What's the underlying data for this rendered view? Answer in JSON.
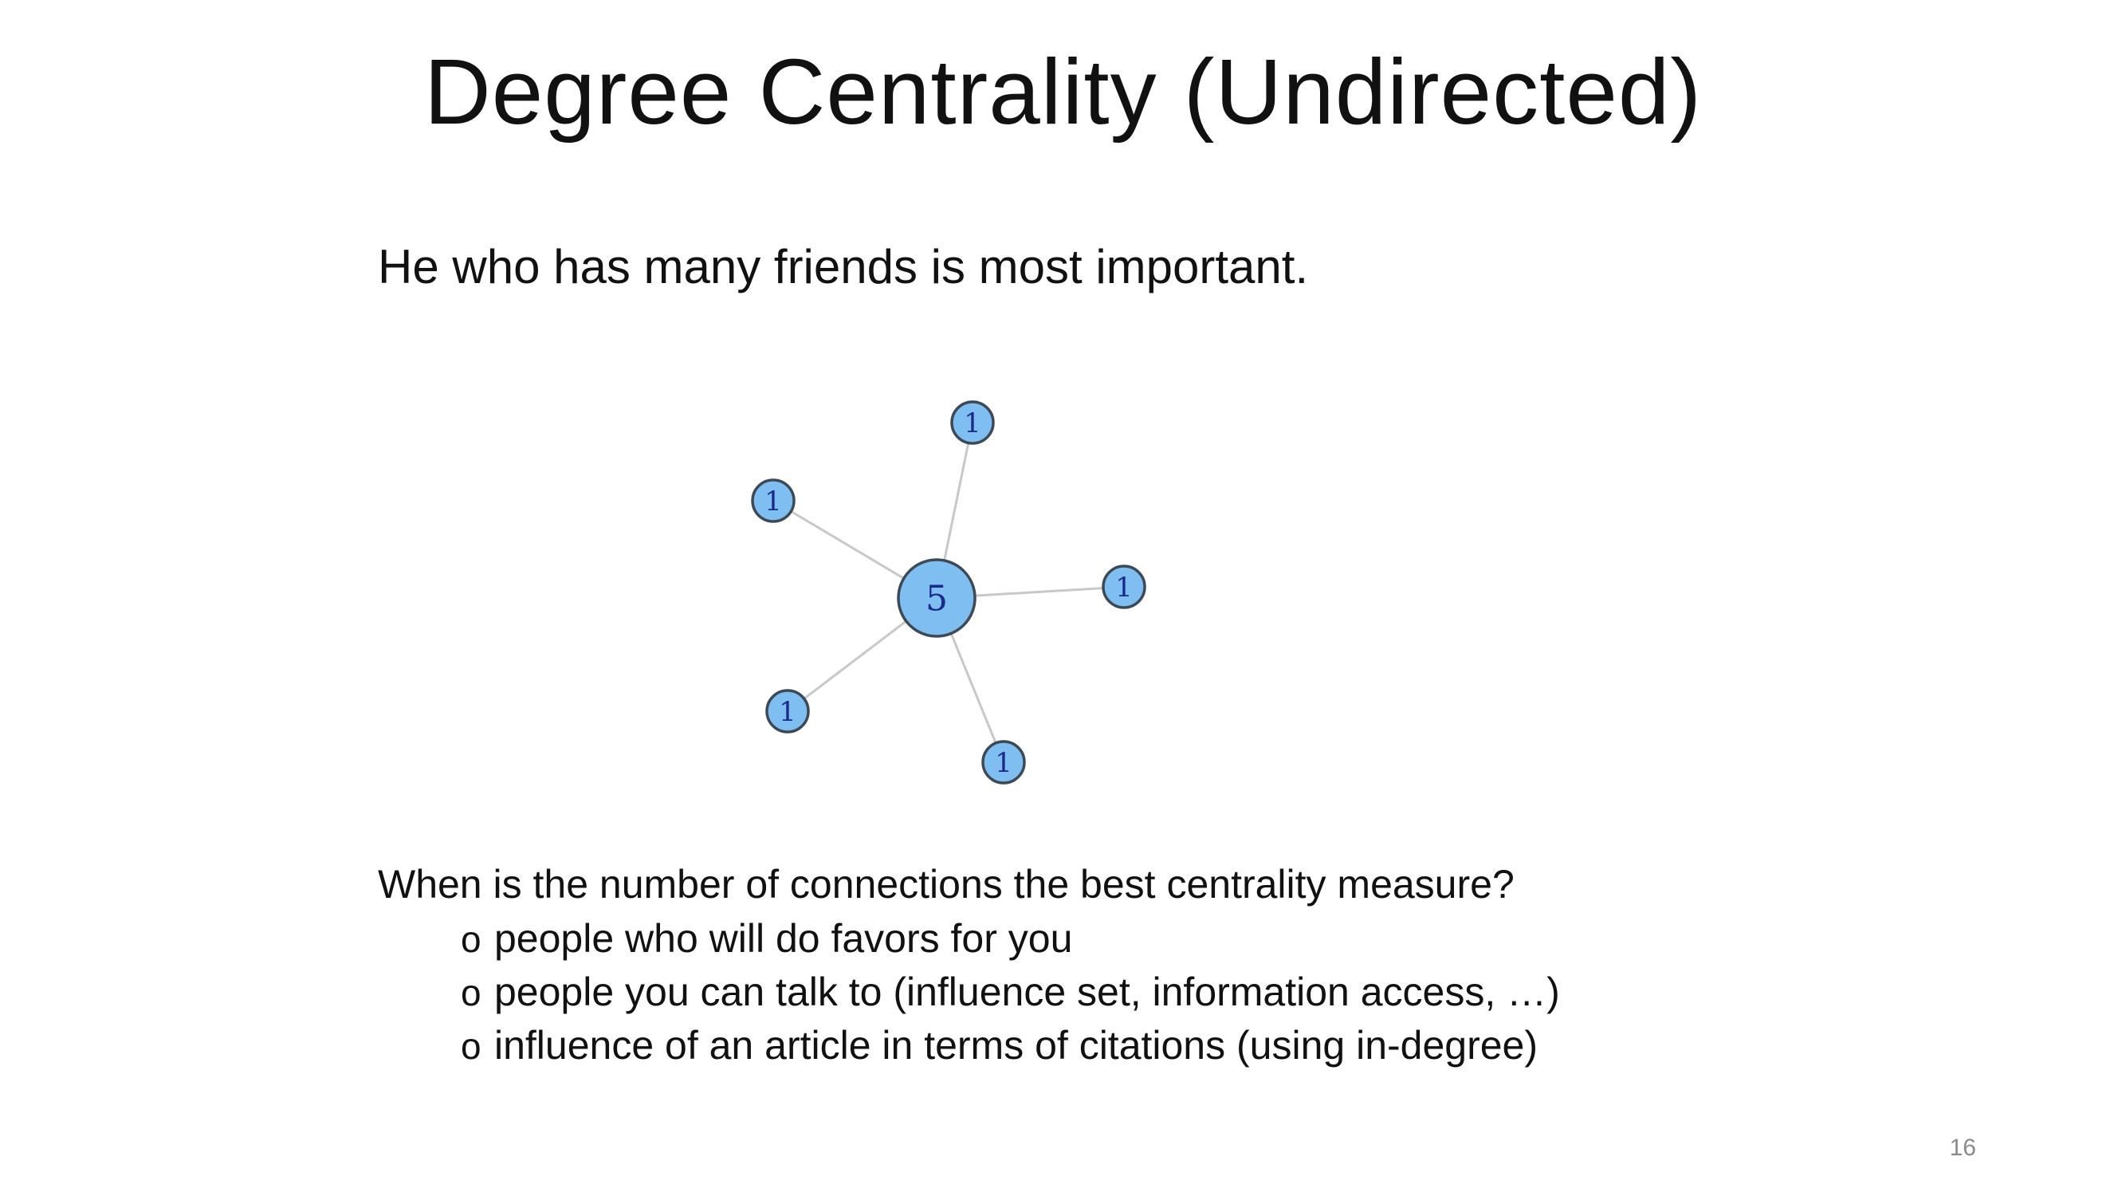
{
  "slide": {
    "title": "Degree Centrality (Undirected)",
    "tagline": "He who has many friends is most important.",
    "question": "When is the number of connections the best centrality measure?",
    "bullet_marker": "o",
    "bullets": [
      "people who will do favors for you",
      "people you can talk to (influence set, information access, …)",
      "influence of an article in terms of citations (using in-degree)"
    ],
    "page_number": "16"
  },
  "diagram": {
    "node_fill": "#7fbef0",
    "node_stroke": "#3d4a55",
    "edge_color": "#c8c8c8",
    "label_color": "#1b2a8a",
    "nodes": [
      {
        "id": "center",
        "label": "5"
      },
      {
        "id": "top",
        "label": "1"
      },
      {
        "id": "upper-left",
        "label": "1"
      },
      {
        "id": "right",
        "label": "1"
      },
      {
        "id": "lower-left",
        "label": "1"
      },
      {
        "id": "bottom",
        "label": "1"
      }
    ],
    "edges": [
      [
        "center",
        "top"
      ],
      [
        "center",
        "upper-left"
      ],
      [
        "center",
        "right"
      ],
      [
        "center",
        "lower-left"
      ],
      [
        "center",
        "bottom"
      ]
    ]
  }
}
